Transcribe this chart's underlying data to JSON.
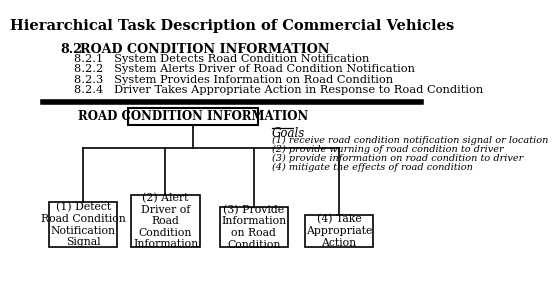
{
  "title": "Hierarchical Task Description of Commercial Vehicles",
  "section_header_num": "8.2",
  "section_header_text": "ROAD CONDITION INFORMATION",
  "subsections": [
    "8.2.1   System Detects Road Condition Notification",
    "8.2.2   System Alerts Driver of Road Condition Notification",
    "8.2.3   System Provides Information on Road Condition",
    "8.2.4   Driver Takes Appropriate Action in Response to Road Condition"
  ],
  "root_box_text": "ROAD CONDITION INFORMATION",
  "goals_label": "Goals",
  "goals": [
    "(1) receive road condition notification signal or location",
    "(2) provide warning of road condition to driver",
    "(3) provide information on road condition to driver",
    "(4) mitigate the effects of road condition"
  ],
  "child_boxes": [
    "(1) Detect\nRoad Condition\nNotification\nSignal",
    "(2) Alert\nDriver of\nRoad\nCondition\nInformation",
    "(3) Provide\nInformation\non Road\nCondition",
    "(4) Take\nAppropriate\nAction"
  ],
  "bg_color": "#ffffff",
  "text_color": "#000000",
  "box_edge_color": "#000000"
}
